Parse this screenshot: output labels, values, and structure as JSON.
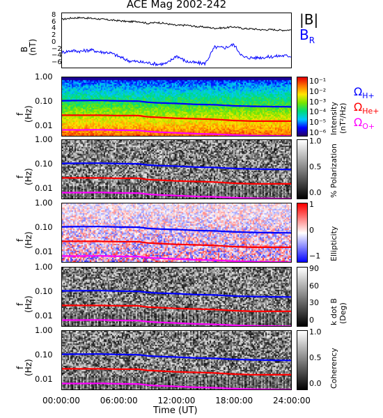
{
  "title": "ACE Mag 2002-242",
  "x_ticks": [
    "00:00:00",
    "06:00:00",
    "12:00:00",
    "18:00:00",
    "24:00:00"
  ],
  "x_title": "Time (UT)",
  "freq_ticks": [
    "1.00",
    "0.10",
    "0.01"
  ],
  "freq_ylabel": "f",
  "freq_ylabel_units": "(Hz)",
  "legend": {
    "B_abs": "|B|",
    "B_R": "B",
    "B_R_sub": "R"
  },
  "omega_labels": [
    {
      "text": "Ω",
      "sub": "H+",
      "color": "#0000ff"
    },
    {
      "text": "Ω",
      "sub": "He+",
      "color": "#ff0000"
    },
    {
      "text": "Ω",
      "sub": "O+",
      "color": "#ff00ff"
    }
  ],
  "colors": {
    "B_abs": "#000000",
    "B_R": "#0000ff",
    "H": "#0000ff",
    "He": "#ff0000",
    "O": "#ff00ff"
  },
  "panels": [
    {
      "id": "intensity",
      "cbar_label": "Intensity",
      "cbar_label2": "(nT²/Hz)",
      "cbar_ticks": [
        "10⁻¹",
        "10⁻²",
        "10⁻³",
        "10⁻⁴",
        "10⁻⁵",
        "10⁻⁶"
      ],
      "colormap": "rainbow"
    },
    {
      "id": "polarization",
      "cbar_label": "% Polarization",
      "cbar_label2": "",
      "cbar_ticks": [
        "1.0",
        "0.5",
        "0.0"
      ],
      "colormap": "gray"
    },
    {
      "id": "ellipticity",
      "cbar_label": "Ellipticity",
      "cbar_label2": "",
      "cbar_ticks": [
        "1",
        "0",
        "−1"
      ],
      "colormap": "bwr"
    },
    {
      "id": "kdotb",
      "cbar_label": "k dot B",
      "cbar_label2": "(Deg)",
      "cbar_ticks": [
        "90",
        "60",
        "30",
        "0"
      ],
      "colormap": "gray"
    },
    {
      "id": "coherency",
      "cbar_label": "Coherency",
      "cbar_label2": "",
      "cbar_ticks": [
        "1.0",
        "0.5",
        "0.0"
      ],
      "colormap": "gray"
    }
  ],
  "chart_data": [
    {
      "type": "line",
      "title": "ACE Mag 2002-242",
      "xlabel": "Time (UT)",
      "ylabel": "B (nT)",
      "ylim": [
        -7,
        9
      ],
      "y_ticks": [
        8,
        6,
        4,
        2,
        0,
        -2,
        -4,
        -6
      ],
      "x_hours": [
        0,
        1,
        2,
        3,
        4,
        5,
        6,
        7,
        8,
        9,
        10,
        11,
        12,
        13,
        14,
        15,
        16,
        17,
        18,
        19,
        20,
        21,
        22,
        23,
        24
      ],
      "series": [
        {
          "name": "|B|",
          "values": [
            7.2,
            7.6,
            7.7,
            7.5,
            7.3,
            7.0,
            6.8,
            6.5,
            6.6,
            6.0,
            6.3,
            5.9,
            5.4,
            5.5,
            5.1,
            4.9,
            4.6,
            4.7,
            5.0,
            4.5,
            4.4,
            4.1,
            4.2,
            4.0,
            4.1
          ]
        },
        {
          "name": "BR",
          "values": [
            -2.5,
            -2.0,
            -2.2,
            -1.8,
            -2.4,
            -2.6,
            -3.8,
            -5.0,
            -5.3,
            -5.6,
            -6.0,
            -5.8,
            -3.5,
            -5.2,
            -5.6,
            -5.8,
            -1.0,
            -1.2,
            -0.2,
            -4.0,
            -4.1,
            -4.0,
            -3.8,
            -3.5,
            -3.6
          ]
        }
      ]
    },
    {
      "type": "heatmap",
      "panel": "cyclotron frequencies (overplotted on all spectrogram panels)",
      "ylabel": "f (Hz)",
      "yscale": "log",
      "ylim": [
        0.004,
        1.0
      ],
      "x_hours": [
        0,
        2,
        4,
        6,
        8,
        9,
        10,
        12,
        14,
        16,
        18,
        20,
        22,
        24
      ],
      "series": [
        {
          "name": "ΩH+",
          "values": [
            0.11,
            0.112,
            0.113,
            0.108,
            0.106,
            0.095,
            0.09,
            0.085,
            0.078,
            0.075,
            0.068,
            0.065,
            0.063,
            0.062
          ]
        },
        {
          "name": "ΩHe+",
          "values": [
            0.028,
            0.028,
            0.028,
            0.027,
            0.027,
            0.024,
            0.023,
            0.021,
            0.02,
            0.019,
            0.017,
            0.016,
            0.016,
            0.016
          ]
        },
        {
          "name": "ΩO+",
          "values": [
            0.007,
            0.007,
            0.0071,
            0.0068,
            0.0067,
            0.006,
            0.0057,
            0.0053,
            0.0049,
            0.0047,
            0.0043,
            0.0041,
            0.004,
            0.0039
          ]
        }
      ]
    }
  ]
}
